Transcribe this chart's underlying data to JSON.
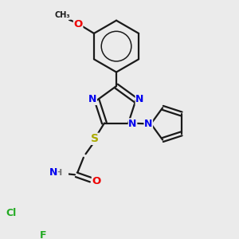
{
  "bg_color": "#ebebeb",
  "bond_color": "#1a1a1a",
  "bond_width": 1.6,
  "atom_colors": {
    "N": "#0000ee",
    "O": "#ee0000",
    "S": "#aaaa00",
    "Cl": "#22aa22",
    "F": "#22aa22",
    "H": "#777777",
    "C": "#1a1a1a"
  },
  "font_size": 8.5,
  "fig_size": [
    3.0,
    3.0
  ],
  "dpi": 100
}
